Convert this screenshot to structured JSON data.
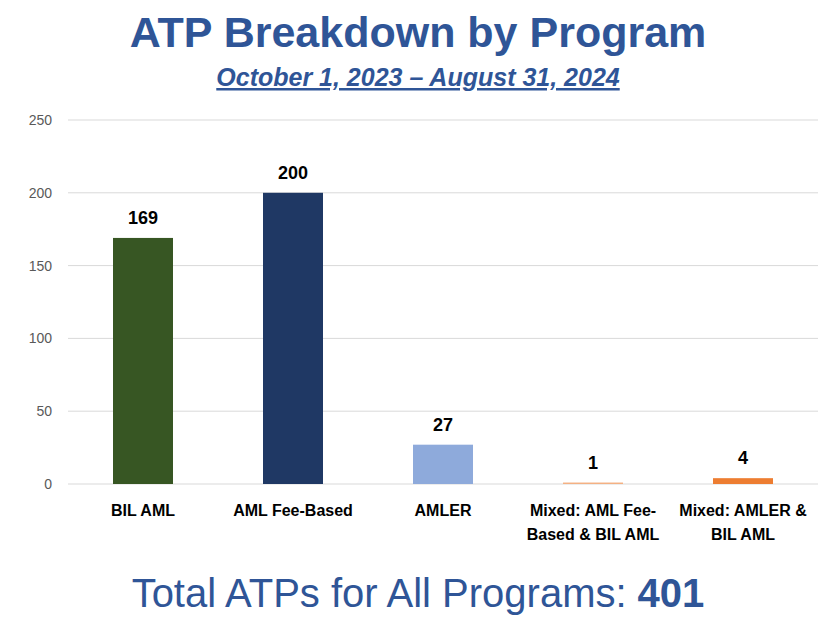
{
  "chart_data": {
    "type": "bar",
    "title": "ATP Breakdown by Program",
    "subtitle": "October 1, 2023 – August 31, 2024",
    "categories": [
      "BIL AML",
      "AML Fee-Based",
      "AMLER",
      "Mixed: AML Fee-Based & BIL AML",
      "Mixed: AMLER & BIL AML"
    ],
    "values": [
      169,
      200,
      27,
      1,
      4
    ],
    "colors": [
      "#375623",
      "#1f3864",
      "#8eaadb",
      "#f4b183",
      "#ed7d31"
    ],
    "ylim": [
      0,
      250
    ],
    "yticks": [
      0,
      50,
      100,
      150,
      200,
      250
    ],
    "grid": true,
    "data_labels": true,
    "annotations": [
      {
        "label": "Total ATPs for All Programs:",
        "value": 401
      }
    ]
  }
}
